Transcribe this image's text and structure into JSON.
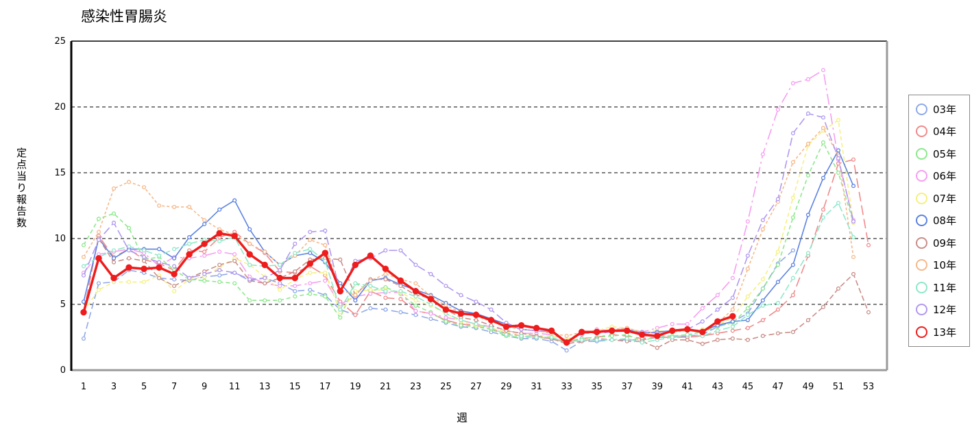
{
  "chart_data": {
    "type": "line",
    "title": "感染性胃腸炎",
    "xlabel": "週",
    "ylabel": "定点当り報告数",
    "xlim": [
      1,
      53
    ],
    "ylim": [
      0,
      25
    ],
    "yticks": [
      0,
      5,
      10,
      15,
      20,
      25
    ],
    "xticks": [
      1,
      3,
      5,
      7,
      9,
      11,
      13,
      15,
      17,
      19,
      21,
      23,
      25,
      27,
      29,
      31,
      33,
      35,
      37,
      39,
      41,
      43,
      45,
      47,
      49,
      51,
      53
    ],
    "grid": "horizontal dashed",
    "legend_position": "right",
    "series": [
      {
        "name": "03年",
        "color": "#8fa8e8",
        "dash": "10 5",
        "values": [
          2.4,
          6.6,
          6.7,
          7.6,
          7.4,
          7.0,
          6.9,
          6.8,
          7.1,
          7.2,
          7.4,
          6.8,
          7.0,
          6.6,
          6.0,
          6.1,
          5.7,
          4.6,
          4.2,
          4.7,
          4.6,
          4.4,
          4.2,
          3.9,
          3.6,
          3.3,
          3.2,
          2.9,
          2.6,
          2.4,
          2.4,
          2.2,
          1.5,
          2.2,
          2.2,
          2.3,
          2.3,
          2.3,
          2.5,
          2.5,
          2.6,
          2.7,
          3.3,
          3.7,
          4.3,
          6.2,
          8.1,
          9.1,
          null,
          null,
          null,
          null,
          null
        ]
      },
      {
        "name": "04年",
        "color": "#f08a8a",
        "dash": "14 6",
        "values": [
          4.4,
          10.2,
          8.6,
          9.2,
          8.4,
          8.1,
          7.6,
          9.1,
          9.0,
          10.1,
          10.5,
          9.6,
          8.9,
          7.5,
          7.4,
          7.9,
          7.2,
          5.2,
          4.2,
          6.0,
          5.5,
          5.4,
          4.5,
          4.3,
          3.8,
          3.5,
          3.4,
          3.1,
          2.8,
          2.6,
          2.5,
          2.4,
          2.1,
          2.4,
          2.5,
          2.7,
          2.6,
          2.4,
          2.5,
          2.5,
          2.5,
          2.6,
          2.8,
          3.0,
          3.2,
          3.8,
          4.6,
          5.7,
          8.7,
          12.2,
          15.7,
          16.0,
          9.5
        ]
      },
      {
        "name": "05年",
        "color": "#8ce88c",
        "dash": "6 4",
        "values": [
          9.5,
          11.5,
          11.9,
          10.8,
          8.4,
          8.6,
          7.6,
          6.9,
          6.8,
          6.7,
          6.6,
          5.3,
          5.3,
          5.3,
          5.6,
          5.8,
          5.6,
          4.0,
          6.6,
          6.0,
          6.3,
          5.8,
          4.9,
          4.4,
          3.7,
          3.4,
          3.3,
          3.1,
          2.6,
          2.5,
          2.5,
          2.4,
          2.2,
          2.4,
          2.5,
          2.6,
          2.7,
          2.2,
          2.6,
          2.6,
          2.7,
          2.9,
          3.3,
          3.6,
          4.7,
          6.2,
          8.0,
          11.6,
          14.8,
          17.3,
          15.0,
          11.2,
          null
        ]
      },
      {
        "name": "06年",
        "color": "#f59ef0",
        "dash": "16 5 3 5",
        "values": [
          7.4,
          8.8,
          9.0,
          9.2,
          8.9,
          7.9,
          8.6,
          8.5,
          8.7,
          9.0,
          8.8,
          7.1,
          6.6,
          6.4,
          6.4,
          6.6,
          6.8,
          5.0,
          5.6,
          5.8,
          5.9,
          5.9,
          4.5,
          4.3,
          4.0,
          3.8,
          3.5,
          3.3,
          3.0,
          2.8,
          2.8,
          2.7,
          2.3,
          2.7,
          3.1,
          3.0,
          3.2,
          2.9,
          3.2,
          3.5,
          3.5,
          4.7,
          5.7,
          7.0,
          11.3,
          16.4,
          19.8,
          21.8,
          22.1,
          22.8,
          16.0,
          11.4,
          null
        ]
      },
      {
        "name": "07年",
        "color": "#f5f080",
        "dash": "6 4",
        "values": [
          4.5,
          6.1,
          6.7,
          6.7,
          6.7,
          7.2,
          6.0,
          6.9,
          7.1,
          7.8,
          8.5,
          8.0,
          7.1,
          6.1,
          6.9,
          7.4,
          7.4,
          4.4,
          6.0,
          6.1,
          6.1,
          5.9,
          5.3,
          4.9,
          4.3,
          3.7,
          3.4,
          3.2,
          2.9,
          2.7,
          2.6,
          2.6,
          2.3,
          2.9,
          3.0,
          3.3,
          3.2,
          2.9,
          3.0,
          2.9,
          3.0,
          3.1,
          3.4,
          4.0,
          5.6,
          6.9,
          9.0,
          13.1,
          17.1,
          18.2,
          19.0,
          11.2,
          null
        ]
      },
      {
        "name": "08年",
        "color": "#5c82e0",
        "dash": "",
        "values": [
          5.2,
          10.0,
          8.5,
          9.2,
          9.2,
          9.2,
          8.5,
          10.1,
          11.1,
          12.2,
          12.9,
          10.7,
          9.0,
          8.0,
          8.7,
          8.9,
          8.2,
          6.6,
          5.3,
          6.8,
          7.0,
          6.5,
          6.1,
          5.7,
          5.1,
          4.5,
          4.3,
          3.9,
          3.5,
          3.1,
          3.0,
          2.9,
          2.1,
          2.8,
          2.9,
          3.0,
          3.1,
          2.8,
          2.9,
          3.0,
          3.1,
          3.0,
          3.4,
          3.7,
          3.8,
          5.3,
          6.7,
          8.0,
          11.8,
          14.6,
          16.7,
          14.0,
          null
        ]
      },
      {
        "name": "09年",
        "color": "#c98e88",
        "dash": "8 4",
        "values": [
          null,
          10.0,
          8.2,
          8.5,
          8.3,
          7.0,
          6.4,
          7.0,
          7.5,
          8.0,
          8.3,
          6.8,
          6.6,
          7.0,
          7.5,
          8.4,
          8.5,
          8.4,
          5.7,
          6.9,
          6.9,
          6.4,
          5.7,
          5.5,
          4.6,
          4.0,
          3.8,
          3.4,
          3.0,
          2.8,
          2.6,
          2.4,
          2.0,
          2.2,
          2.4,
          2.3,
          2.2,
          2.2,
          1.7,
          2.3,
          2.3,
          2.0,
          2.3,
          2.4,
          2.3,
          2.6,
          2.8,
          2.9,
          3.8,
          4.8,
          6.2,
          7.3,
          4.4
        ]
      },
      {
        "name": "10年",
        "color": "#f5b88a",
        "dash": "4 3",
        "values": [
          8.6,
          10.5,
          13.8,
          14.3,
          13.9,
          12.5,
          12.4,
          12.4,
          11.4,
          10.7,
          10.3,
          9.6,
          9.0,
          8.0,
          8.7,
          9.9,
          9.5,
          6.1,
          5.7,
          6.8,
          7.3,
          6.9,
          6.6,
          5.6,
          4.9,
          4.4,
          4.1,
          3.7,
          3.3,
          3.1,
          3.0,
          2.8,
          2.6,
          2.9,
          2.9,
          3.1,
          3.2,
          2.9,
          2.8,
          2.9,
          3.0,
          3.0,
          3.6,
          4.6,
          7.7,
          10.7,
          12.8,
          15.8,
          17.2,
          18.4,
          16.3,
          8.6,
          null
        ]
      },
      {
        "name": "11年",
        "color": "#8ee8c8",
        "dash": "10 4",
        "values": [
          7.9,
          8.6,
          9.1,
          9.4,
          9.1,
          8.7,
          9.2,
          9.6,
          9.9,
          9.8,
          10.1,
          8.0,
          7.9,
          8.0,
          8.9,
          9.2,
          8.3,
          4.6,
          6.6,
          6.4,
          6.0,
          6.0,
          5.6,
          5.0,
          4.3,
          3.8,
          3.5,
          3.2,
          2.7,
          2.6,
          2.5,
          2.5,
          2.1,
          2.3,
          2.3,
          2.3,
          2.4,
          2.1,
          2.3,
          2.5,
          2.7,
          2.6,
          3.0,
          3.3,
          4.2,
          4.9,
          5.1,
          7.0,
          8.9,
          11.6,
          12.7,
          10.1,
          null
        ]
      },
      {
        "name": "12年",
        "color": "#b098f0",
        "dash": "12 5",
        "values": [
          7.2,
          9.9,
          11.2,
          9.1,
          8.6,
          8.2,
          7.9,
          7.0,
          7.3,
          7.6,
          7.4,
          6.9,
          7.0,
          7.6,
          9.6,
          10.5,
          10.6,
          5.9,
          8.3,
          8.5,
          9.1,
          9.1,
          8.0,
          7.3,
          6.4,
          5.7,
          5.2,
          4.6,
          3.6,
          3.1,
          3.0,
          2.9,
          2.2,
          2.8,
          2.8,
          2.9,
          3.0,
          2.9,
          2.8,
          3.0,
          3.1,
          3.7,
          4.6,
          5.5,
          8.7,
          11.4,
          13.0,
          18.0,
          19.5,
          19.2,
          16.1,
          11.3,
          null
        ]
      },
      {
        "name": "13年",
        "color": "#ee1c1c",
        "dash": "",
        "bold": true,
        "values": [
          4.4,
          8.5,
          7.0,
          7.8,
          7.7,
          7.8,
          7.3,
          8.8,
          9.6,
          10.4,
          10.2,
          8.8,
          8.0,
          7.0,
          7.0,
          8.1,
          8.9,
          6.0,
          8.0,
          8.7,
          7.7,
          6.8,
          6.0,
          5.4,
          4.6,
          4.3,
          4.2,
          3.8,
          3.3,
          3.4,
          3.2,
          3.0,
          2.1,
          2.9,
          2.9,
          3.0,
          3.0,
          2.7,
          2.6,
          3.0,
          3.1,
          2.9,
          3.7,
          4.1,
          null,
          null,
          null,
          null,
          null,
          null,
          null,
          null,
          null
        ]
      }
    ]
  }
}
